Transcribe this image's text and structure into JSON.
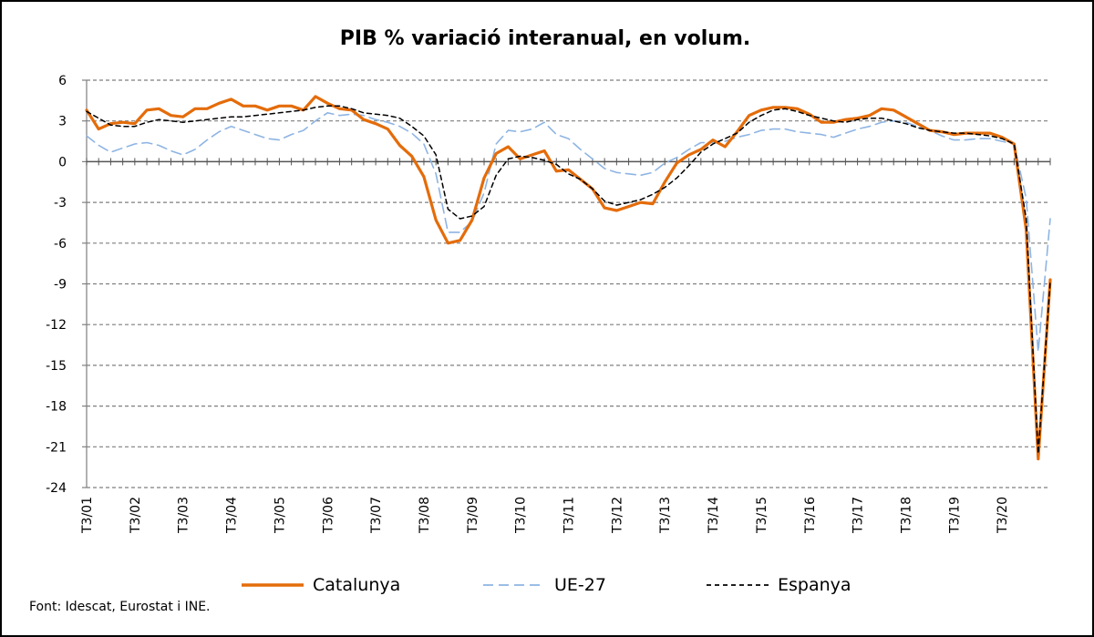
{
  "chart_data": {
    "type": "line",
    "title": "PIB % variació interanual, en volum.",
    "source": "Font: Idescat, Eurostat i INE.",
    "ylim": [
      -24,
      6
    ],
    "yticks": [
      6,
      3,
      0,
      -3,
      -6,
      -9,
      -12,
      -15,
      -18,
      -21,
      -24
    ],
    "ytick_labels": [
      "6",
      "3",
      "0",
      "-3",
      "-6",
      "-9",
      "-12",
      "-15",
      "-18",
      "-21",
      "-24"
    ],
    "xtick_labels": [
      "T3/01",
      "T3/02",
      "T3/03",
      "T3/04",
      "T3/05",
      "T3/06",
      "T3/07",
      "T3/08",
      "T3/09",
      "T3/10",
      "T3/11",
      "T3/12",
      "T3/13",
      "T3/14",
      "T3/15",
      "T3/16",
      "T3/17",
      "T3/18",
      "T3/19",
      "T3/20"
    ],
    "grid": true,
    "legend_position": "bottom",
    "series": [
      {
        "name": "Catalunya",
        "color": "#E46C0A",
        "style": "solid",
        "values": [
          3.8,
          2.4,
          2.8,
          2.9,
          2.8,
          3.8,
          3.9,
          3.4,
          3.3,
          3.9,
          3.9,
          4.3,
          4.6,
          4.1,
          4.1,
          3.8,
          4.1,
          4.1,
          3.8,
          4.8,
          4.3,
          3.9,
          3.8,
          3.1,
          2.8,
          2.4,
          1.2,
          0.4,
          -1.1,
          -4.3,
          -6.0,
          -5.8,
          -4.3,
          -1.2,
          0.6,
          1.1,
          0.2,
          0.5,
          0.8,
          -0.7,
          -0.6,
          -1.3,
          -2.0,
          -3.4,
          -3.6,
          -3.3,
          -3.0,
          -3.1,
          -1.5,
          -0.1,
          0.5,
          0.9,
          1.6,
          1.1,
          2.2,
          3.4,
          3.8,
          4.0,
          4.0,
          3.9,
          3.5,
          2.9,
          2.9,
          3.1,
          3.2,
          3.4,
          3.9,
          3.8,
          3.3,
          2.8,
          2.3,
          2.2,
          2.0,
          2.1,
          2.1,
          2.1,
          1.8,
          1.3,
          -5.0,
          -21.9,
          -8.7
        ]
      },
      {
        "name": "UE-27",
        "color": "#8EB4E3",
        "style": "dashed",
        "values": [
          1.9,
          1.2,
          0.7,
          1.0,
          1.3,
          1.4,
          1.2,
          0.8,
          0.5,
          0.9,
          1.6,
          2.2,
          2.6,
          2.3,
          2.0,
          1.7,
          1.6,
          2.0,
          2.3,
          3.0,
          3.6,
          3.4,
          3.5,
          3.4,
          3.1,
          2.9,
          2.6,
          2.1,
          1.3,
          -0.9,
          -5.2,
          -5.2,
          -4.4,
          -2.3,
          1.3,
          2.3,
          2.2,
          2.4,
          2.9,
          2.0,
          1.7,
          0.9,
          0.2,
          -0.5,
          -0.8,
          -0.9,
          -1.0,
          -0.8,
          -0.1,
          0.3,
          0.9,
          1.4,
          1.4,
          1.5,
          1.8,
          2.0,
          2.3,
          2.4,
          2.4,
          2.2,
          2.1,
          2.0,
          1.8,
          2.1,
          2.4,
          2.6,
          2.9,
          3.0,
          2.9,
          2.6,
          2.3,
          1.9,
          1.6,
          1.6,
          1.7,
          1.7,
          1.5,
          1.3,
          -2.7,
          -14.0,
          -4.2
        ]
      },
      {
        "name": "Espanya",
        "color": "#000000",
        "style": "dashed",
        "values": [
          3.7,
          3.2,
          2.7,
          2.6,
          2.6,
          2.9,
          3.1,
          3.0,
          2.9,
          3.0,
          3.1,
          3.2,
          3.3,
          3.3,
          3.4,
          3.5,
          3.6,
          3.7,
          3.8,
          4.0,
          4.1,
          4.1,
          3.9,
          3.6,
          3.5,
          3.4,
          3.2,
          2.6,
          1.9,
          0.5,
          -3.5,
          -4.2,
          -4.0,
          -3.3,
          -1.0,
          0.2,
          0.4,
          0.3,
          0.1,
          -0.2,
          -0.9,
          -1.3,
          -2.0,
          -2.9,
          -3.2,
          -3.0,
          -2.8,
          -2.4,
          -1.9,
          -1.2,
          -0.3,
          0.7,
          1.3,
          1.7,
          2.1,
          2.9,
          3.4,
          3.8,
          3.9,
          3.7,
          3.4,
          3.2,
          3.0,
          2.9,
          3.1,
          3.2,
          3.2,
          3.0,
          2.8,
          2.5,
          2.3,
          2.2,
          2.1,
          2.1,
          2.0,
          1.9,
          1.7,
          1.3,
          -4.2,
          -21.5,
          -8.8
        ]
      }
    ]
  }
}
